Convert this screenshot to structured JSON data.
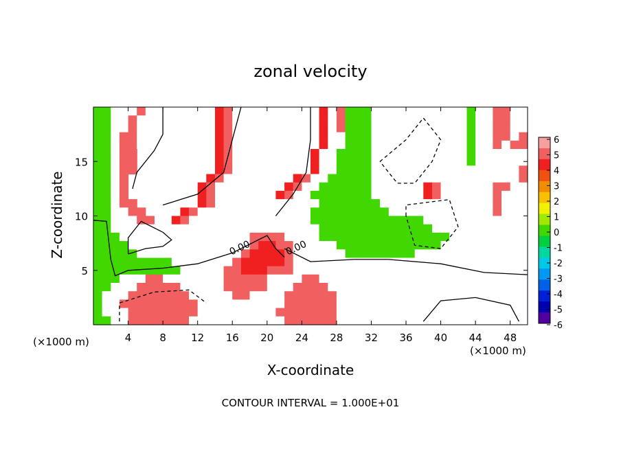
{
  "chart_data": {
    "type": "heatmap",
    "title": "zonal velocity",
    "xlabel": "X-coordinate",
    "ylabel": "Z-coordinate",
    "x_unit": "(×1000 m)",
    "x_unit_right": "(×1000 m)",
    "footer": "CONTOUR INTERVAL = 1.000E+01",
    "xlim": [
      0,
      50
    ],
    "ylim": [
      0,
      20
    ],
    "x_ticks": [
      4,
      8,
      12,
      16,
      20,
      24,
      28,
      32,
      36,
      40,
      44,
      48
    ],
    "y_ticks": [
      5,
      10,
      15
    ],
    "contour_labels": [
      {
        "text": "0.00",
        "x": 17.0,
        "z": 6.8
      },
      {
        "text": "0.00",
        "x": 23.5,
        "z": 6.8
      }
    ],
    "colorbar": {
      "ticks": [
        6,
        5,
        4,
        3,
        2,
        1,
        0,
        -1,
        -2,
        -3,
        -4,
        -5,
        -6
      ],
      "colors": [
        "#f8a0a0",
        "#f06060",
        "#f02020",
        "#f05010",
        "#f08c00",
        "#f8c000",
        "#f0f000",
        "#a0e800",
        "#40d800",
        "#00d040",
        "#00d8a0",
        "#00c8e8",
        "#0098f0",
        "#0060e8",
        "#0020d8",
        "#0000b0",
        "#5000a0"
      ]
    },
    "field_rows": [
      "1122.32.......4322222.....4231112.......22212233222",
      "112.32........4322222.....4231112.......22212233222",
      "112.32........4322222.....4231112.......22212233222",
      "112332........4322222.....4221112.......2221223323",
      "112332........4322222.....4221112.......2221223233",
      "11233.........4322222....42211112.......2221222222",
      "11233.........4322222....42211112.......2221222222",
      "11233.........4322222....4221111222.....2222222223",
      "1123.........43222222..4322111112222....2222222223",
      "1123........432222222.43221111112222..4322222233",
      "1123........4322222224322111111122222.432222223",
      "11233.......43222222222222111111122222222222223",
      "112233....4322222222222221111111112222222222223",
      "1122233..432222222222222211111111111112222222222",
      "1122222222222222222222222211111111111112222222222",
      "1112222222222222223333222211111111111111122222222",
      "1111222222222222223443322222111111111111222222222",
      "1111122222222222234444322222211111111222222222222",
      "1111111112222222344444322222222222222222222222222",
      "1111111111222223344433322222222222222222222222222",
      "1112223322222223333322223322222222222222222222222",
      "1122233333222223333322233332222222222222222222222",
      "1222333333322222332222333333222222222222222222222",
      "1223333333332222222222333333222222222222222222222",
      "1222333333332222222223333333222222222222222222222",
      "1122333333322222222222333333222222222222222222222"
    ]
  }
}
